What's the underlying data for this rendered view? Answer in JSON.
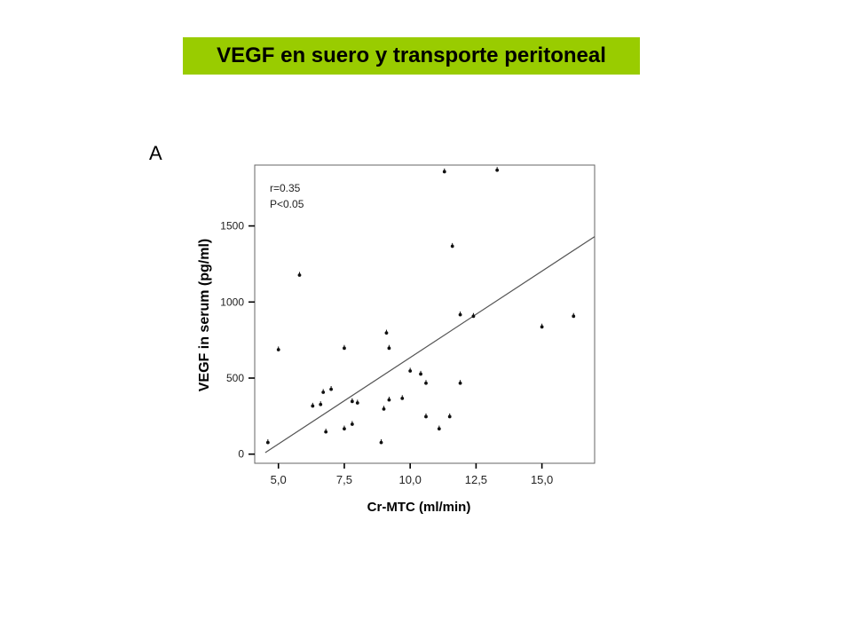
{
  "slide": {
    "title": "VEGF en suero y transporte peritoneal",
    "panel_label": "A"
  },
  "colors": {
    "banner": "#99cc00",
    "points": "#111111",
    "line": "#555555",
    "frame": "#666666"
  },
  "chart_data": {
    "type": "scatter",
    "xlabel": "Cr-MTC (ml/min)",
    "ylabel": "VEGF in serum (pg/ml)",
    "xlim": [
      4.1,
      17.0
    ],
    "ylim": [
      -60,
      1900
    ],
    "x_ticks": [
      5.0,
      7.5,
      10.0,
      12.5,
      15.0
    ],
    "x_tick_labels": [
      "5,0",
      "7,5",
      "10,0",
      "12,5",
      "15,0"
    ],
    "y_ticks": [
      0,
      500,
      1000,
      1500
    ],
    "y_tick_labels": [
      "0",
      "500",
      "1000",
      "1500"
    ],
    "grid": false,
    "annotations": [
      "r=0.35",
      "P<0.05"
    ],
    "regression_line": {
      "x": [
        4.5,
        17.0
      ],
      "y": [
        10,
        1430
      ]
    },
    "points": [
      {
        "x": 4.6,
        "y": 80
      },
      {
        "x": 5.0,
        "y": 690
      },
      {
        "x": 5.8,
        "y": 1180
      },
      {
        "x": 6.3,
        "y": 320
      },
      {
        "x": 6.6,
        "y": 330
      },
      {
        "x": 6.7,
        "y": 410
      },
      {
        "x": 6.8,
        "y": 150
      },
      {
        "x": 7.0,
        "y": 430
      },
      {
        "x": 7.5,
        "y": 700
      },
      {
        "x": 7.5,
        "y": 170
      },
      {
        "x": 7.8,
        "y": 350
      },
      {
        "x": 7.8,
        "y": 200
      },
      {
        "x": 8.0,
        "y": 340
      },
      {
        "x": 8.9,
        "y": 80
      },
      {
        "x": 9.0,
        "y": 300
      },
      {
        "x": 9.1,
        "y": 800
      },
      {
        "x": 9.2,
        "y": 700
      },
      {
        "x": 9.2,
        "y": 360
      },
      {
        "x": 9.7,
        "y": 370
      },
      {
        "x": 10.0,
        "y": 550
      },
      {
        "x": 10.4,
        "y": 530
      },
      {
        "x": 10.6,
        "y": 470
      },
      {
        "x": 10.6,
        "y": 250
      },
      {
        "x": 11.1,
        "y": 170
      },
      {
        "x": 11.3,
        "y": 1860
      },
      {
        "x": 11.5,
        "y": 250
      },
      {
        "x": 11.6,
        "y": 1370
      },
      {
        "x": 11.9,
        "y": 920
      },
      {
        "x": 11.9,
        "y": 470
      },
      {
        "x": 12.4,
        "y": 910
      },
      {
        "x": 13.3,
        "y": 1870
      },
      {
        "x": 15.0,
        "y": 840
      },
      {
        "x": 16.2,
        "y": 910
      }
    ]
  }
}
